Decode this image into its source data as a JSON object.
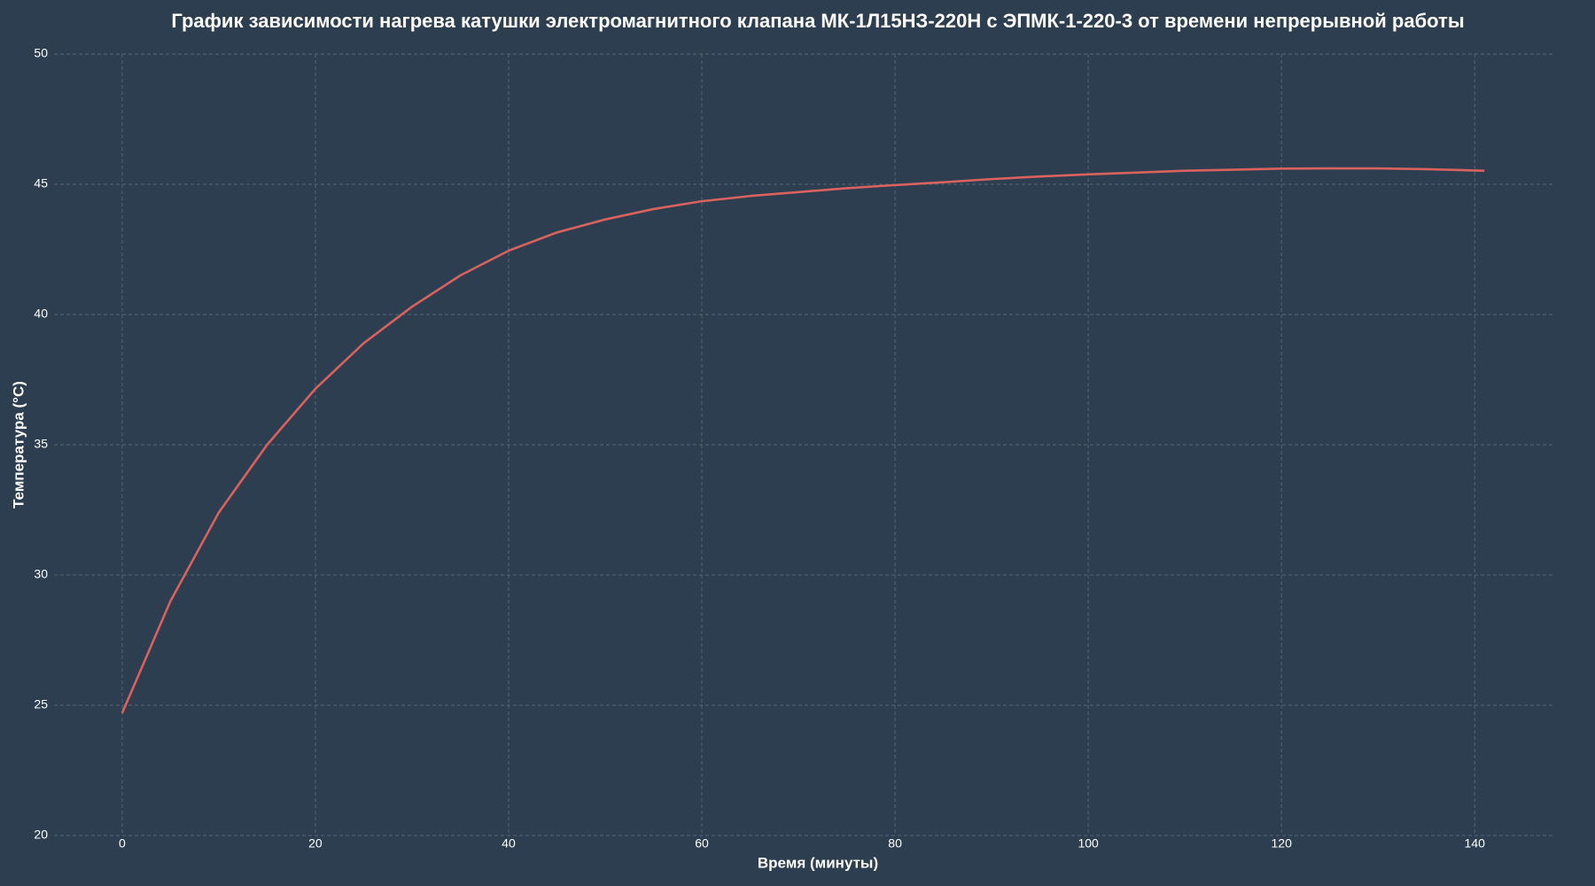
{
  "chart_data": {
    "type": "line",
    "title": "График зависимости нагрева катушки электромагнитного клапана МК-1Л15НЗ-220Н с ЭПМК-1-220-3 от времени непрерывной работы",
    "xlabel": "Время (минуты)",
    "ylabel": "Температура (°C)",
    "x": [
      0,
      5,
      10,
      15,
      20,
      25,
      30,
      35,
      40,
      45,
      50,
      55,
      60,
      65,
      70,
      75,
      80,
      85,
      90,
      95,
      100,
      105,
      110,
      115,
      120,
      125,
      130,
      135,
      140,
      141
    ],
    "series": [
      {
        "color": "#d9625f",
        "values": [
          24.7,
          29.0,
          32.4,
          35.0,
          37.15,
          38.9,
          40.3,
          41.5,
          42.45,
          43.15,
          43.65,
          44.05,
          44.35,
          44.55,
          44.7,
          44.85,
          44.97,
          45.08,
          45.2,
          45.3,
          45.38,
          45.45,
          45.52,
          45.56,
          45.6,
          45.61,
          45.61,
          45.58,
          45.53,
          45.52
        ]
      }
    ],
    "xlim": [
      -7.05,
      148.05
    ],
    "ylim": [
      20,
      50
    ],
    "xticks": [
      0,
      20,
      40,
      60,
      80,
      100,
      120,
      140
    ],
    "yticks": [
      20,
      25,
      30,
      35,
      40,
      45,
      50
    ],
    "grid": true
  }
}
